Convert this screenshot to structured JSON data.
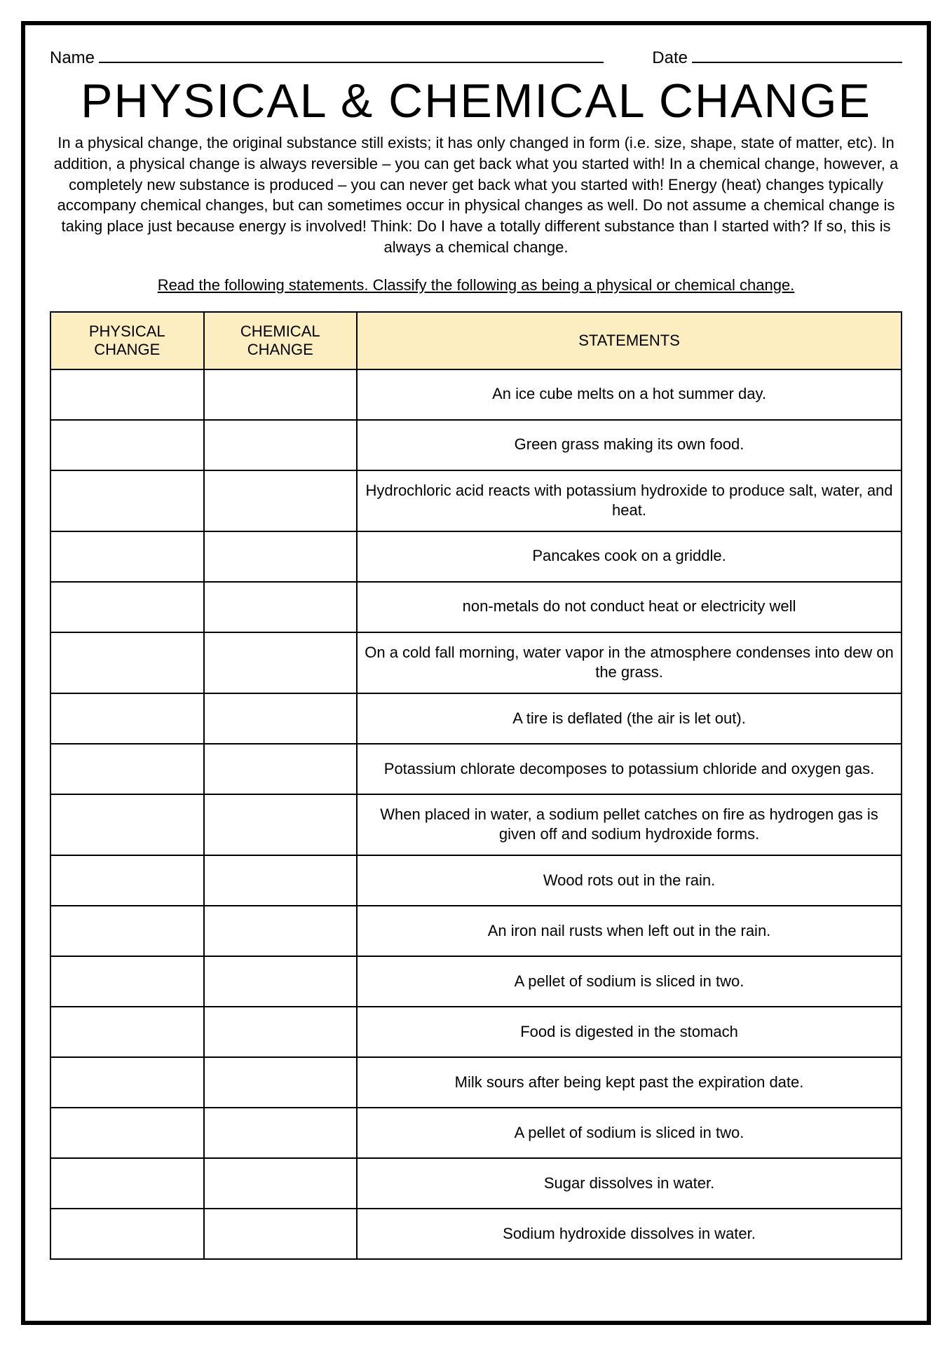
{
  "header": {
    "name_label": "Name",
    "date_label": "Date"
  },
  "title": "PHYSICAL & CHEMICAL CHANGE",
  "intro": "In a physical change, the original substance still exists; it has only changed in form (i.e. size, shape, state of matter, etc). In addition, a physical change is always reversible – you can get back what you started with! In a chemical change, however, a completely new substance is produced – you can never get back what you started with! Energy (heat) changes typically accompany chemical changes, but can sometimes occur in physical changes as well. Do not assume a chemical change is taking place just because energy is involved! Think: Do I have a totally different substance than I started with? If so, this is always a chemical change.",
  "instructions": "Read the following statements. Classify the following as being a physical or chemical change.",
  "table": {
    "columns": [
      "PHYSICAL CHANGE",
      "CHEMICAL CHANGE",
      "STATEMENTS"
    ],
    "header_bg": "#fceec0",
    "border_color": "#000000",
    "statements": [
      "An ice cube melts on a hot summer day.",
      "Green grass making its own food.",
      "Hydrochloric acid reacts with potassium hydroxide to produce salt, water, and heat.",
      "Pancakes cook on a griddle.",
      "non-metals do not conduct heat or electricity well",
      "On a cold fall morning, water vapor in the atmosphere condenses into dew on the grass.",
      "A tire is deflated (the air is let out).",
      "Potassium chlorate decomposes to potassium chloride and oxygen gas.",
      "When placed in water, a sodium pellet catches on fire as hydrogen gas is given off and sodium hydroxide forms.",
      "Wood rots out in the rain.",
      "An iron nail rusts when left out in the rain.",
      "A pellet of sodium is sliced in two.",
      "Food is digested in the stomach",
      "Milk sours after being kept past the expiration date.",
      "A pellet of sodium is sliced in two.",
      "Sugar dissolves in water.",
      "Sodium hydroxide dissolves in water."
    ]
  },
  "style": {
    "page_border_color": "#000000",
    "page_border_width": 6,
    "title_fontsize": 68,
    "body_fontsize": 22,
    "header_fontsize": 24,
    "background_color": "#ffffff"
  }
}
